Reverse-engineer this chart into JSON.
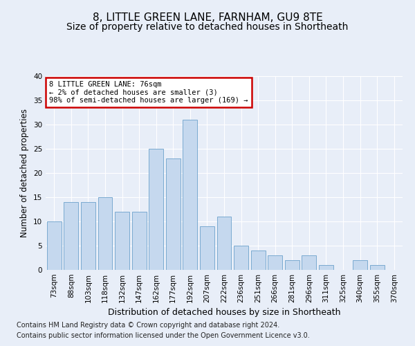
{
  "title": "8, LITTLE GREEN LANE, FARNHAM, GU9 8TE",
  "subtitle": "Size of property relative to detached houses in Shortheath",
  "xlabel": "Distribution of detached houses by size in Shortheath",
  "ylabel": "Number of detached properties",
  "categories": [
    "73sqm",
    "88sqm",
    "103sqm",
    "118sqm",
    "132sqm",
    "147sqm",
    "162sqm",
    "177sqm",
    "192sqm",
    "207sqm",
    "222sqm",
    "236sqm",
    "251sqm",
    "266sqm",
    "281sqm",
    "296sqm",
    "311sqm",
    "325sqm",
    "340sqm",
    "355sqm",
    "370sqm"
  ],
  "values": [
    10,
    14,
    14,
    15,
    12,
    12,
    25,
    23,
    31,
    9,
    11,
    5,
    4,
    3,
    2,
    3,
    1,
    0,
    2,
    1,
    0
  ],
  "bar_color": "#c5d8ee",
  "bar_edge_color": "#7aaad0",
  "annotation_text": "8 LITTLE GREEN LANE: 76sqm\n← 2% of detached houses are smaller (3)\n98% of semi-detached houses are larger (169) →",
  "annotation_box_color": "#ffffff",
  "annotation_box_edge_color": "#cc0000",
  "ylim": [
    0,
    40
  ],
  "yticks": [
    0,
    5,
    10,
    15,
    20,
    25,
    30,
    35,
    40
  ],
  "footer1": "Contains HM Land Registry data © Crown copyright and database right 2024.",
  "footer2": "Contains public sector information licensed under the Open Government Licence v3.0.",
  "bg_color": "#e8eef8",
  "grid_color": "#ffffff",
  "title_fontsize": 11,
  "subtitle_fontsize": 10,
  "xlabel_fontsize": 9,
  "ylabel_fontsize": 8.5,
  "tick_fontsize": 7.5,
  "footer_fontsize": 7,
  "ann_fontsize": 7.5
}
